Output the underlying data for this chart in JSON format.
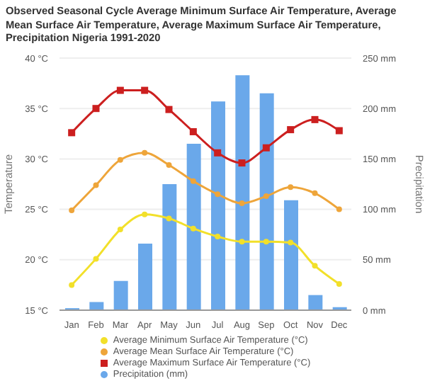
{
  "chart_data": {
    "type": "line",
    "title": "Observed Seasonal Cycle Average Minimum Surface Air Temperature, Average Mean Surface Air Temperature, Average Maximum Surface Air Temperature, Precipitation Nigeria 1991-2020",
    "ylabel": "Temperature",
    "y2label": "Precipitation",
    "categories": [
      "Jan",
      "Feb",
      "Mar",
      "Apr",
      "May",
      "Jun",
      "Jul",
      "Aug",
      "Sep",
      "Oct",
      "Nov",
      "Dec"
    ],
    "series": [
      {
        "name": "Average Minimum Surface Air Temperature (°C)",
        "color": "#f2e02a",
        "marker": "circle",
        "values": [
          17.5,
          20.1,
          23.0,
          24.5,
          24.1,
          23.1,
          22.3,
          21.8,
          21.8,
          21.7,
          19.4,
          17.6
        ]
      },
      {
        "name": "Average Mean Surface Air Temperature (°C)",
        "color": "#eea53a",
        "marker": "circle",
        "values": [
          24.9,
          27.4,
          29.9,
          30.6,
          29.4,
          27.8,
          26.5,
          25.6,
          26.3,
          27.2,
          26.6,
          25.0
        ]
      },
      {
        "name": "Average Maximum Surface Air Temperature (°C)",
        "color": "#cc1f1f",
        "marker": "square",
        "values": [
          32.6,
          35.0,
          36.8,
          36.8,
          34.9,
          32.7,
          30.6,
          29.6,
          31.1,
          32.9,
          33.9,
          32.8
        ]
      },
      {
        "name": "Precipitation (mm)",
        "type": "bar",
        "axis": "y2",
        "color": "#6aa8ea",
        "values": [
          2,
          8,
          29,
          66,
          125,
          165,
          207,
          233,
          215,
          109,
          15,
          3
        ]
      }
    ],
    "ylim": [
      15,
      40
    ],
    "yticks": [
      {
        "value": 15,
        "label": "15 °C"
      },
      {
        "value": 20,
        "label": "20 °C"
      },
      {
        "value": 25,
        "label": "25 °C"
      },
      {
        "value": 30,
        "label": "30 °C"
      },
      {
        "value": 35,
        "label": "35 °C"
      },
      {
        "value": 40,
        "label": "40 °C"
      }
    ],
    "y2lim": [
      0,
      250
    ],
    "y2ticks": [
      {
        "value": 0,
        "label": "0 mm"
      },
      {
        "value": 50,
        "label": "50 mm"
      },
      {
        "value": 100,
        "label": "100 mm"
      },
      {
        "value": 150,
        "label": "150 mm"
      },
      {
        "value": 200,
        "label": "200 mm"
      },
      {
        "value": 250,
        "label": "250 mm"
      }
    ],
    "grid": "y",
    "legend": "bottom"
  }
}
